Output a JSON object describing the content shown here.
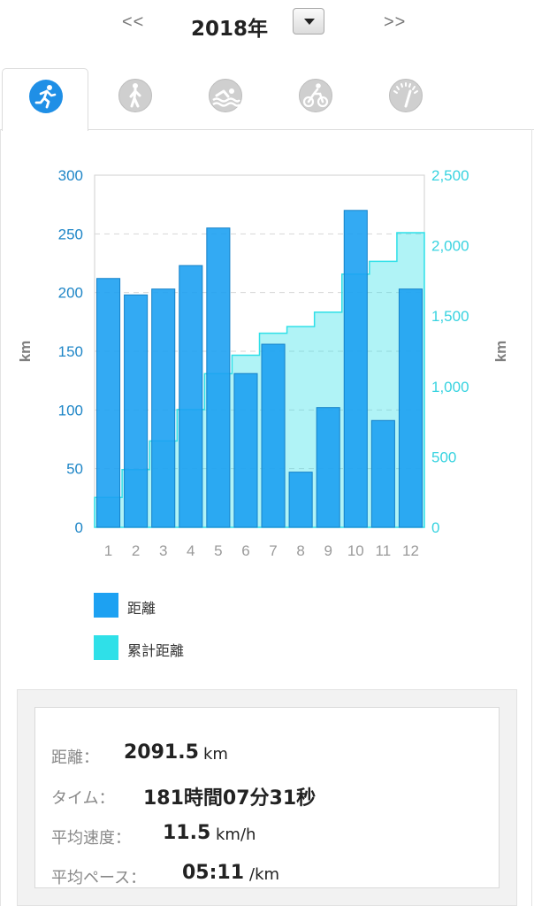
{
  "header": {
    "prev_label": "<<",
    "year_label": "2018年",
    "next_label": ">>"
  },
  "tabs": [
    {
      "icon": "running-icon",
      "active": true
    },
    {
      "icon": "walking-icon",
      "active": false
    },
    {
      "icon": "swimming-icon",
      "active": false
    },
    {
      "icon": "cycling-icon",
      "active": false
    },
    {
      "icon": "gauge-icon",
      "active": false
    }
  ],
  "colors": {
    "distance": "#1da1f2",
    "cumulative": "#2fe0e8",
    "left_axis": "#1f86c7",
    "right_axis": "#38d3e0"
  },
  "chart_data": {
    "type": "bar",
    "categories": [
      "1",
      "2",
      "3",
      "4",
      "5",
      "6",
      "7",
      "8",
      "9",
      "10",
      "11",
      "12"
    ],
    "series": [
      {
        "name": "距離",
        "axis": "left",
        "values": [
          212,
          198,
          203,
          223,
          255,
          131,
          156,
          47,
          102,
          270,
          91,
          203
        ]
      },
      {
        "name": "累計距離",
        "axis": "right",
        "values": [
          212,
          410,
          613,
          836,
          1091,
          1222,
          1378,
          1425,
          1527,
          1797,
          1888,
          2091.5
        ]
      }
    ],
    "ylabel": "km",
    "y2label": "km",
    "ylim": [
      0,
      300
    ],
    "y2lim": [
      0,
      2500
    ],
    "yticks": [
      "0",
      "50",
      "100",
      "150",
      "200",
      "250",
      "300"
    ],
    "y2ticks": [
      "0",
      "500",
      "1,000",
      "1,500",
      "2,000",
      "2,500"
    ],
    "grid": true,
    "legend": "bottom-left"
  },
  "summary": {
    "distance_label": "距離：",
    "distance_value": "2091.5",
    "distance_unit": "km",
    "time_label": "タイム：",
    "time_value": "181時間07分31秒",
    "speed_label": "平均速度：",
    "speed_value": "11.5",
    "speed_unit": "km/h",
    "pace_label": "平均ペース：",
    "pace_value": "05:11",
    "pace_unit": "/km"
  }
}
